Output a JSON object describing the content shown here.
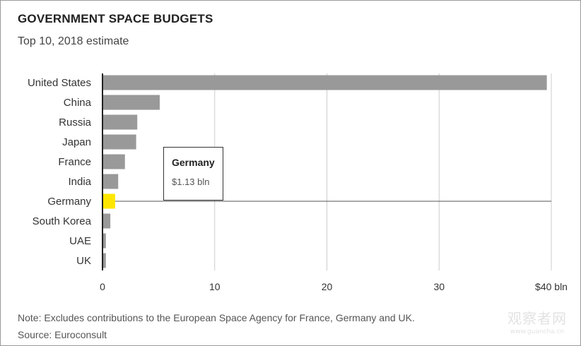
{
  "chart_data": {
    "type": "bar",
    "orientation": "horizontal",
    "title": "GOVERNMENT SPACE BUDGETS",
    "subtitle": "Top 10, 2018 estimate",
    "categories": [
      "United States",
      "China",
      "Russia",
      "Japan",
      "France",
      "India",
      "Germany",
      "South Korea",
      "UAE",
      "UK"
    ],
    "values": [
      39.6,
      5.1,
      3.1,
      3.0,
      2.0,
      1.4,
      1.13,
      0.7,
      0.3,
      0.3
    ],
    "highlight": "Germany",
    "xlim": [
      0,
      40
    ],
    "xticks": [
      0,
      10,
      20,
      30,
      40
    ],
    "xtick_labels": [
      "0",
      "10",
      "20",
      "30",
      "$40 bln"
    ],
    "grid": true,
    "colors": {
      "bar": "#999999",
      "highlight": "#ffe600",
      "grid": "#cccccc",
      "axis": "#222222"
    },
    "tooltip": {
      "name": "Germany",
      "value": "$1.13 bln"
    },
    "note": "Note: Excludes contributions to the European Space Agency for France, Germany and UK.",
    "source": "Source: Euroconsult"
  },
  "watermark": {
    "main": "观察者网",
    "sub": "www.guancha.cn"
  }
}
